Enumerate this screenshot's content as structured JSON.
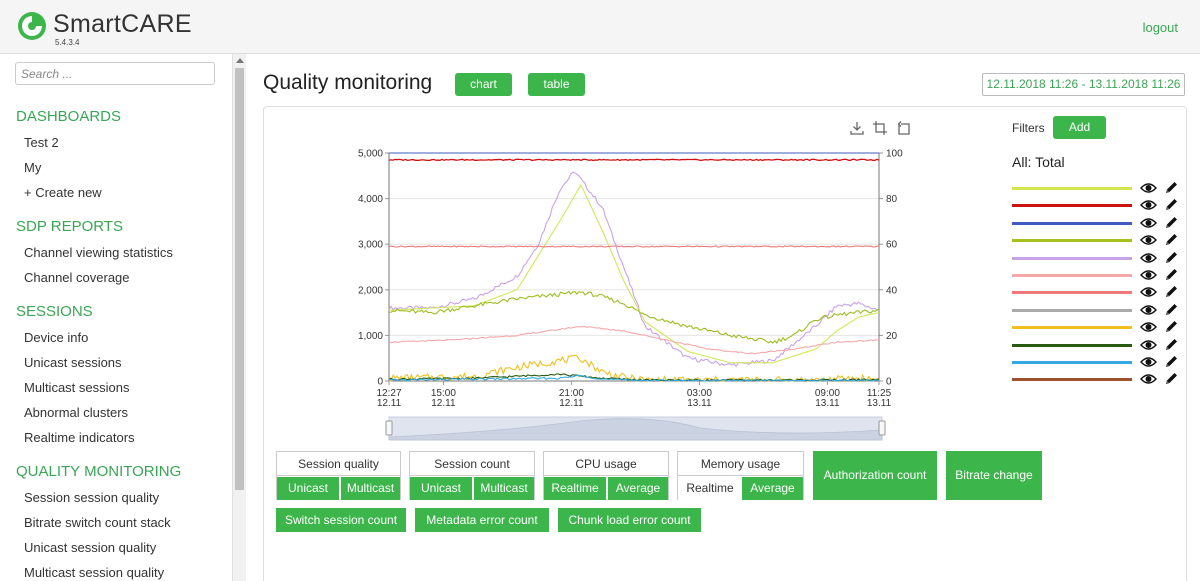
{
  "header": {
    "app_name": "SmartCARE",
    "version": "5.4.3.4",
    "logout_label": "logout"
  },
  "sidebar": {
    "search_placeholder": "Search ...",
    "sections": [
      {
        "title": "DASHBOARDS",
        "items": [
          "Test 2",
          "My",
          "+ Create new"
        ]
      },
      {
        "title": "SDP REPORTS",
        "items": [
          "Channel viewing statistics",
          "Channel coverage"
        ]
      },
      {
        "title": "SESSIONS",
        "items": [
          "Device info",
          "Unicast sessions",
          "Multicast sessions",
          "Abnormal clusters",
          "Realtime indicators"
        ]
      },
      {
        "title": "QUALITY MONITORING",
        "items": [
          "Session session quality",
          "Bitrate switch count stack",
          "Unicast session quality",
          "Multicast session quality"
        ]
      }
    ]
  },
  "main": {
    "title": "Quality monitoring",
    "view_buttons": [
      "chart",
      "table"
    ],
    "date_range": "12.11.2018 11:26 - 13.11.2018 11:26"
  },
  "chart_data": {
    "type": "line",
    "title": "",
    "y_left": {
      "min": 0,
      "max": 5000,
      "ticks": [
        "0",
        "1,000",
        "2,000",
        "3,000",
        "4,000",
        "5,000"
      ]
    },
    "y_right": {
      "min": 0,
      "max": 100,
      "ticks": [
        "0",
        "20",
        "40",
        "60",
        "80",
        "100"
      ]
    },
    "x_ticks": [
      {
        "time": "12:27",
        "date": "12.11"
      },
      {
        "time": "15:00",
        "date": "12.11"
      },
      {
        "time": "21:00",
        "date": "12.11"
      },
      {
        "time": "03:00",
        "date": "13.11"
      },
      {
        "time": "09:00",
        "date": "13.11"
      },
      {
        "time": "11:25",
        "date": "13.11"
      }
    ],
    "x_hours": [
      0,
      2.55,
      8.55,
      14.55,
      20.55,
      22.97
    ],
    "x_range_hours": [
      0,
      22.97
    ],
    "series": [
      {
        "name": "lavender",
        "color": "#c9a2ec",
        "axis": "left",
        "x": [
          0,
          2,
          4,
          6,
          7,
          8,
          8.7,
          10,
          11,
          12,
          14,
          16,
          18,
          20,
          21,
          22,
          22.97
        ],
        "values": [
          1600,
          1600,
          1800,
          2300,
          3000,
          4200,
          4600,
          3800,
          2500,
          1200,
          500,
          350,
          450,
          1200,
          1650,
          1700,
          1550
        ]
      },
      {
        "name": "lime",
        "color": "#cfe85a",
        "axis": "left",
        "x": [
          0,
          2,
          4,
          6,
          8,
          9,
          10,
          11,
          12,
          14,
          16,
          18,
          20,
          21,
          22,
          22.97
        ],
        "values": [
          1550,
          1600,
          1650,
          2000,
          3500,
          4300,
          3300,
          2200,
          1300,
          650,
          400,
          400,
          700,
          1100,
          1400,
          1500
        ]
      },
      {
        "name": "olive-green",
        "color": "#9cbd20",
        "axis": "left",
        "x": [
          0,
          2,
          4,
          6,
          9,
          10,
          11,
          12,
          14,
          16,
          18,
          19,
          20,
          21,
          22,
          22.97
        ],
        "values": [
          1550,
          1500,
          1650,
          1800,
          1950,
          1850,
          1700,
          1450,
          1200,
          1000,
          850,
          1000,
          1350,
          1450,
          1500,
          1550
        ]
      },
      {
        "name": "red",
        "color": "#cc1111",
        "axis": "left",
        "x": [
          0,
          22.97
        ],
        "values": [
          4850,
          4850
        ]
      },
      {
        "name": "salmon",
        "color": "#f07878",
        "axis": "left",
        "x": [
          0,
          22.97
        ],
        "values": [
          2950,
          2950
        ]
      },
      {
        "name": "pink",
        "color": "#f4a9a9",
        "axis": "left",
        "x": [
          0,
          3,
          6,
          9,
          11,
          13,
          15,
          17,
          19,
          21,
          22.97
        ],
        "values": [
          850,
          900,
          1000,
          1200,
          1100,
          900,
          700,
          600,
          700,
          850,
          900
        ]
      },
      {
        "name": "gray",
        "color": "#aaaaaa",
        "axis": "left",
        "x": [
          0,
          22.97
        ],
        "values": [
          5000,
          5000
        ]
      },
      {
        "name": "yellow",
        "color": "#f0c020",
        "axis": "left",
        "x": [
          0,
          4,
          6,
          8,
          9,
          10,
          11,
          12,
          20,
          22,
          22.97
        ],
        "values": [
          60,
          100,
          300,
          450,
          500,
          200,
          80,
          20,
          20,
          60,
          40
        ]
      },
      {
        "name": "dark-green",
        "color": "#2a5a10",
        "axis": "left",
        "x": [
          0,
          4,
          8,
          10,
          12,
          20,
          22.97
        ],
        "values": [
          40,
          60,
          150,
          60,
          20,
          20,
          30
        ]
      },
      {
        "name": "blue",
        "color": "#3f5bbf",
        "axis": "left",
        "x": [
          0,
          22.97
        ],
        "values": [
          5000,
          5000
        ]
      },
      {
        "name": "sky",
        "color": "#36a9e1",
        "axis": "left",
        "x": [
          0,
          8,
          9,
          10,
          12,
          22.97
        ],
        "values": [
          20,
          60,
          120,
          40,
          10,
          10
        ]
      }
    ],
    "navigator_range_hours": [
      0,
      22.97
    ]
  },
  "legend": {
    "filters_label": "Filters",
    "add_label": "Add",
    "group_title": "All: Total",
    "lines": [
      {
        "color": "#d2e650"
      },
      {
        "color": "#cc1111"
      },
      {
        "color": "#3f5bbf"
      },
      {
        "color": "#a6c21f"
      },
      {
        "color": "#c9a2ec"
      },
      {
        "color": "#f4a9a9"
      },
      {
        "color": "#f07878"
      },
      {
        "color": "#aaaaaa"
      },
      {
        "color": "#f0c020"
      },
      {
        "color": "#2a5a10"
      },
      {
        "color": "#36a9e1"
      },
      {
        "color": "#a0522d"
      }
    ]
  },
  "metrics": {
    "session_quality": {
      "title": "Session quality",
      "options": [
        "Unicast",
        "Multicast"
      ]
    },
    "session_count": {
      "title": "Session count",
      "options": [
        "Unicast",
        "Multicast"
      ]
    },
    "cpu_usage": {
      "title": "CPU usage",
      "options": [
        "Realtime",
        "Average"
      ]
    },
    "memory_usage": {
      "title": "Memory usage",
      "options": [
        "Realtime",
        "Average"
      ]
    },
    "authorization_count": "Authorization count",
    "bitrate_change": "Bitrate change",
    "switch_session_count": "Switch session count",
    "metadata_error_count": "Metadata error count",
    "chunk_load_error_count": "Chunk load error count"
  }
}
